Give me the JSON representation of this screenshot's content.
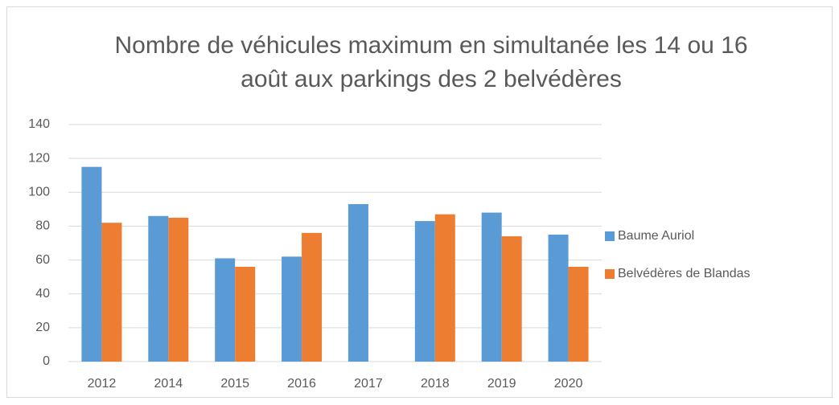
{
  "chart_data": {
    "type": "bar",
    "title": "Nombre de véhicules maximum en simultanée les 14 ou 16 août aux parkings des 2 belvédères",
    "categories": [
      "2012",
      "2014",
      "2015",
      "2016",
      "2017",
      "2018",
      "2019",
      "2020"
    ],
    "series": [
      {
        "name": "Baume Auriol",
        "color": "#5b9bd5",
        "values": [
          115,
          86,
          61,
          62,
          93,
          83,
          88,
          75
        ]
      },
      {
        "name": "Belvédères de Blandas",
        "color": "#ed7d31",
        "values": [
          82,
          85,
          56,
          76,
          null,
          87,
          74,
          56
        ]
      }
    ],
    "ylim": [
      0,
      140
    ],
    "yticks": [
      0,
      20,
      40,
      60,
      80,
      100,
      120,
      140
    ],
    "grid": true,
    "legend": "right"
  }
}
